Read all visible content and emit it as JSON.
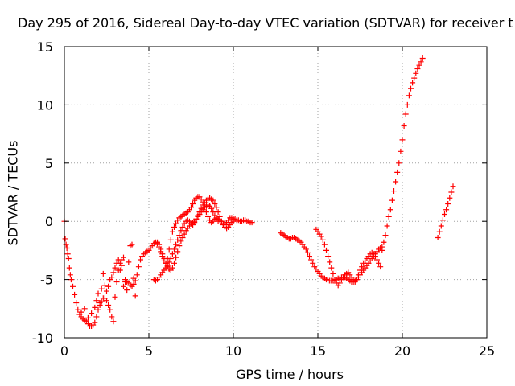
{
  "chart_data": {
    "type": "scatter",
    "title": "Day 295 of 2016, Sidereal Day-to-day VTEC variation (SDTVAR) for receiver t",
    "xlabel": "GPS time / hours",
    "ylabel": "SDTVAR / TECUs",
    "xlim": [
      0,
      25
    ],
    "ylim": [
      -10,
      15
    ],
    "xticks": [
      0,
      5,
      10,
      15,
      20,
      25
    ],
    "yticks": [
      -10,
      -5,
      0,
      5,
      10,
      15
    ],
    "grid": true,
    "marker": "+",
    "color": "#ff0000",
    "series": [
      {
        "x": [
          0.0,
          0.05,
          0.1,
          0.15,
          0.2,
          0.25,
          0.3,
          0.35,
          0.4,
          0.5,
          0.6,
          0.7,
          0.8,
          0.9,
          1.0,
          1.1,
          1.2,
          1.3,
          1.4,
          1.5,
          1.6,
          1.7,
          1.8,
          1.9,
          2.0,
          2.1,
          2.2,
          2.3,
          2.4,
          2.5,
          2.6,
          2.7,
          2.8,
          2.9,
          3.0,
          3.1,
          3.2,
          3.3,
          3.4,
          3.5,
          3.6,
          3.7,
          3.8,
          3.9,
          4.0,
          4.1,
          4.2,
          4.3,
          4.4,
          4.5,
          4.6,
          4.7,
          4.8,
          4.9,
          5.0,
          5.1,
          5.2,
          5.3,
          5.4,
          5.5,
          5.6,
          5.7,
          5.8,
          5.9,
          6.0,
          6.1,
          6.2,
          6.3,
          6.4,
          6.5,
          6.6,
          6.7,
          6.8,
          6.9,
          7.0,
          7.1,
          7.2,
          7.3,
          7.4,
          7.5,
          7.6,
          7.7,
          7.8,
          7.9,
          8.0,
          8.1,
          8.2,
          8.3,
          8.4,
          8.5,
          8.6,
          8.7,
          8.8,
          8.9,
          9.0,
          9.1,
          9.2,
          9.3,
          9.4,
          9.5,
          9.6,
          9.7,
          9.8,
          9.9,
          10.0,
          10.1,
          10.2,
          10.3,
          10.4,
          10.5,
          10.6,
          10.7,
          10.8,
          10.9,
          11.0,
          11.1
        ],
        "y": [
          0.0,
          -1.5,
          -2.0,
          -2.3,
          -2.8,
          -3.2,
          -4.0,
          -4.6,
          -5.0,
          -5.6,
          -6.3,
          -7.0,
          -7.6,
          -8.0,
          -8.2,
          -8.4,
          -8.5,
          -8.6,
          -8.8,
          -9.0,
          -9.0,
          -8.9,
          -8.7,
          -8.2,
          -7.6,
          -7.2,
          -6.9,
          -6.6,
          -6.6,
          -6.8,
          -7.2,
          -7.6,
          -8.2,
          -8.6,
          -6.5,
          -5.2,
          -4.2,
          -3.6,
          -3.3,
          -3.1,
          -5.0,
          -5.2,
          -5.3,
          -5.5,
          -5.6,
          -5.4,
          -5.1,
          -4.6,
          -3.9,
          -3.3,
          -3.0,
          -2.8,
          -2.7,
          -2.6,
          -2.5,
          -2.3,
          -2.1,
          -1.9,
          -1.8,
          -1.9,
          -2.2,
          -2.6,
          -3.0,
          -3.4,
          -3.6,
          -3.2,
          -2.4,
          -1.6,
          -0.9,
          -0.5,
          -0.2,
          0.1,
          0.3,
          0.4,
          0.5,
          0.6,
          0.7,
          0.8,
          1.0,
          1.2,
          1.5,
          1.8,
          2.0,
          2.1,
          2.1,
          1.9,
          1.6,
          1.2,
          0.8,
          0.4,
          0.1,
          -0.1,
          0.0,
          0.2,
          0.3,
          0.2,
          0.1,
          0.0,
          -0.2,
          -0.3,
          -0.1,
          0.1,
          0.3,
          0.3,
          0.2,
          0.2,
          0.1,
          0.1,
          0.0,
          0.0,
          0.1,
          0.1,
          0.0,
          0.0,
          -0.1,
          -0.1
        ]
      },
      {
        "x": [
          5.3,
          5.4,
          5.5,
          5.6,
          5.7,
          5.8,
          5.9,
          6.0,
          6.1,
          6.2,
          6.3,
          6.4,
          6.5,
          6.6,
          6.7,
          6.8,
          6.9,
          7.0,
          7.1,
          7.2,
          7.3,
          7.4,
          7.5,
          7.6,
          7.7,
          7.8,
          7.9,
          8.0,
          8.1,
          8.2,
          8.3,
          8.4,
          8.5,
          8.6,
          8.7,
          8.8,
          8.9,
          9.0,
          9.1,
          9.2,
          9.3,
          9.4,
          9.5,
          9.6,
          9.7,
          9.8,
          9.9,
          10.0
        ],
        "y": [
          -5.0,
          -5.1,
          -5.0,
          -4.8,
          -4.6,
          -4.4,
          -4.2,
          -4.0,
          -3.8,
          -3.5,
          -3.2,
          -2.8,
          -2.4,
          -2.0,
          -1.6,
          -1.2,
          -0.8,
          -0.5,
          -0.2,
          0.0,
          0.1,
          0.0,
          -0.2,
          -0.3,
          -0.1,
          0.2,
          0.5,
          0.8,
          1.1,
          1.4,
          1.6,
          1.8,
          1.9,
          2.0,
          1.9,
          1.8,
          1.5,
          1.2,
          0.8,
          0.4,
          0.0,
          -0.3,
          -0.5,
          -0.6,
          -0.5,
          -0.3,
          -0.1,
          0.0
        ]
      },
      {
        "x": [
          5.5,
          5.6,
          5.7,
          5.8,
          5.9,
          6.0,
          6.1,
          6.2,
          6.3,
          6.4,
          6.5,
          6.6,
          6.7,
          6.8,
          6.9,
          7.0,
          7.1,
          7.2,
          7.3,
          7.4,
          7.5,
          7.6,
          7.7,
          7.8,
          7.9,
          8.0,
          8.1,
          8.2,
          8.3,
          8.4,
          8.5,
          8.6,
          8.7,
          8.8,
          8.9,
          9.0,
          9.1
        ],
        "y": [
          -1.8,
          -2.0,
          -2.4,
          -2.8,
          -3.2,
          -3.6,
          -3.9,
          -4.1,
          -4.2,
          -4.0,
          -3.6,
          -3.1,
          -2.6,
          -2.1,
          -1.7,
          -1.4,
          -1.1,
          -0.8,
          -0.6,
          -0.4,
          -0.2,
          -0.1,
          0.0,
          0.2,
          0.4,
          0.6,
          0.8,
          1.0,
          1.2,
          1.3,
          1.4,
          1.3,
          1.1,
          0.8,
          0.5,
          0.2,
          0.0
        ]
      },
      {
        "x": [
          1.0,
          1.2,
          1.4,
          1.6,
          1.8,
          1.9,
          2.0,
          2.1,
          2.2,
          2.3,
          2.4,
          2.5,
          2.6,
          2.7,
          2.8,
          2.9,
          3.0,
          3.1,
          3.2,
          3.3,
          3.4,
          3.5,
          3.6,
          3.7,
          3.8,
          3.9,
          4.0,
          4.1,
          4.2
        ],
        "y": [
          -7.8,
          -7.5,
          -8.3,
          -7.9,
          -7.4,
          -6.8,
          -6.2,
          -7.0,
          -5.8,
          -4.5,
          -5.5,
          -6.0,
          -5.6,
          -5.0,
          -4.8,
          -4.4,
          -4.0,
          -3.6,
          -3.3,
          -4.2,
          -3.8,
          -5.6,
          -5.2,
          -5.9,
          -3.5,
          -2.1,
          -2.0,
          -4.9,
          -6.4
        ]
      },
      {
        "x": [
          12.8,
          12.9,
          13.0,
          13.1,
          13.2,
          13.3,
          13.4,
          13.5,
          13.6,
          13.7,
          13.8,
          13.9,
          14.0,
          14.1,
          14.2,
          14.3,
          14.4,
          14.5,
          14.6,
          14.7,
          14.8,
          14.9,
          15.0,
          15.1,
          15.2,
          15.3,
          15.4,
          15.5,
          15.6,
          15.7,
          15.8,
          15.9,
          16.0,
          16.1,
          16.2,
          16.3,
          16.4,
          16.5,
          16.6,
          16.7,
          16.8,
          16.9,
          17.0,
          17.1,
          17.2,
          17.3,
          17.4,
          17.5,
          17.6,
          17.7,
          17.8,
          17.9,
          18.0,
          18.1,
          18.2,
          18.3,
          18.4,
          18.5,
          18.6,
          18.7,
          18.8
        ],
        "y": [
          -1.0,
          -1.1,
          -1.2,
          -1.3,
          -1.4,
          -1.5,
          -1.5,
          -1.4,
          -1.4,
          -1.5,
          -1.6,
          -1.7,
          -1.8,
          -2.0,
          -2.2,
          -2.4,
          -2.7,
          -3.0,
          -3.3,
          -3.6,
          -3.9,
          -4.1,
          -4.3,
          -4.5,
          -4.7,
          -4.8,
          -4.9,
          -5.0,
          -5.1,
          -5.1,
          -5.1,
          -5.1,
          -5.0,
          -5.0,
          -4.9,
          -4.9,
          -4.8,
          -4.8,
          -4.8,
          -4.9,
          -5.0,
          -5.1,
          -5.2,
          -5.2,
          -5.1,
          -5.0,
          -4.8,
          -4.6,
          -4.4,
          -4.2,
          -4.0,
          -3.8,
          -3.6,
          -3.4,
          -3.2,
          -3.0,
          -2.8,
          -2.6,
          -2.4,
          -2.3,
          -2.2
        ]
      },
      {
        "x": [
          14.9,
          15.0,
          15.1,
          15.2,
          15.3,
          15.4,
          15.5,
          15.6,
          15.7,
          15.8,
          15.9,
          16.0,
          16.1,
          16.2,
          16.3,
          16.4,
          16.5,
          16.6,
          16.7,
          16.8,
          16.9,
          17.0,
          17.1,
          17.2,
          17.3,
          17.4,
          17.5,
          17.6,
          17.7,
          17.8,
          17.9,
          18.0,
          18.1,
          18.2,
          18.3,
          18.4,
          18.5,
          18.6,
          18.7,
          18.8,
          18.9,
          19.0,
          19.1,
          19.2,
          19.3,
          19.4,
          19.5,
          19.6,
          19.7,
          19.8,
          19.9,
          20.0,
          20.1,
          20.2,
          20.3,
          20.4,
          20.5,
          20.6,
          20.7,
          20.8,
          20.9,
          21.0,
          21.1,
          21.2
        ],
        "y": [
          -0.7,
          -0.9,
          -1.1,
          -1.3,
          -1.6,
          -2.0,
          -2.5,
          -3.0,
          -3.5,
          -4.0,
          -4.5,
          -5.0,
          -5.3,
          -5.5,
          -5.3,
          -5.0,
          -4.8,
          -4.6,
          -4.5,
          -4.4,
          -4.6,
          -4.8,
          -5.0,
          -5.2,
          -5.0,
          -4.6,
          -4.2,
          -3.9,
          -3.6,
          -3.4,
          -3.2,
          -3.0,
          -2.8,
          -2.7,
          -2.8,
          -3.0,
          -3.3,
          -3.6,
          -3.9,
          -2.5,
          -1.8,
          -1.2,
          -0.4,
          0.4,
          1.0,
          1.8,
          2.6,
          3.4,
          4.2,
          5.0,
          6.0,
          7.0,
          8.2,
          9.2,
          10.0,
          10.8,
          11.4,
          11.9,
          12.3,
          12.7,
          13.1,
          13.4,
          13.7,
          14.0
        ]
      },
      {
        "x": [
          22.1,
          22.2,
          22.3,
          22.4,
          22.5,
          22.6,
          22.7,
          22.8,
          22.9,
          23.0
        ],
        "y": [
          -1.4,
          -0.9,
          -0.4,
          0.1,
          0.6,
          1.0,
          1.5,
          2.0,
          2.5,
          3.0
        ]
      }
    ]
  }
}
